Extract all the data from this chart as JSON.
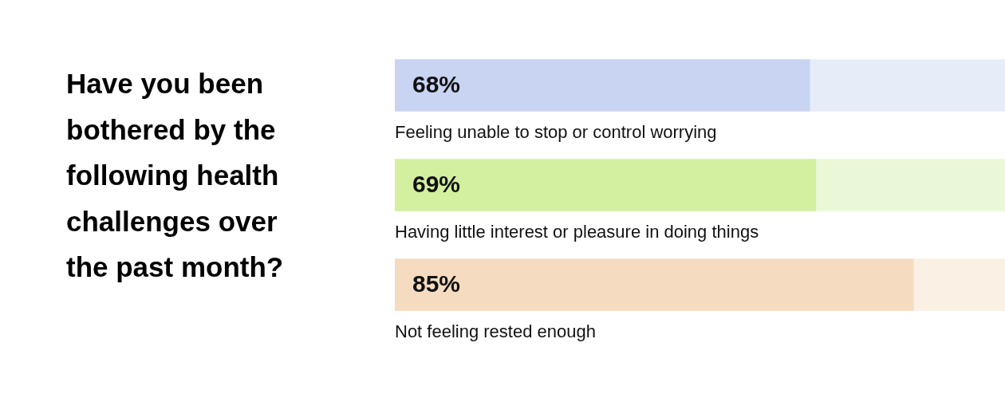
{
  "chart_data": {
    "type": "bar",
    "orientation": "horizontal",
    "stacked": true,
    "title": "Have you been bothered by the following health challenges over the past month?",
    "categories": [
      "Feeling unable to stop or control worrying",
      "Having little interest or pleasure in doing things",
      "Not feeling rested enough"
    ],
    "series": [
      {
        "colors": [
          "#c8d4f2",
          "#d2f0a0",
          "#f5dcc0"
        ],
        "values": [
          68,
          69,
          85
        ],
        "value_labels": [
          "68%",
          "69%",
          "85%"
        ]
      },
      {
        "colors": [
          "#e6edf9",
          "#ebf8d8",
          "#faf0e3"
        ],
        "values": [
          32,
          31,
          15
        ]
      }
    ],
    "xlim": [
      0,
      100
    ],
    "tick_labels": false,
    "legend": false
  }
}
